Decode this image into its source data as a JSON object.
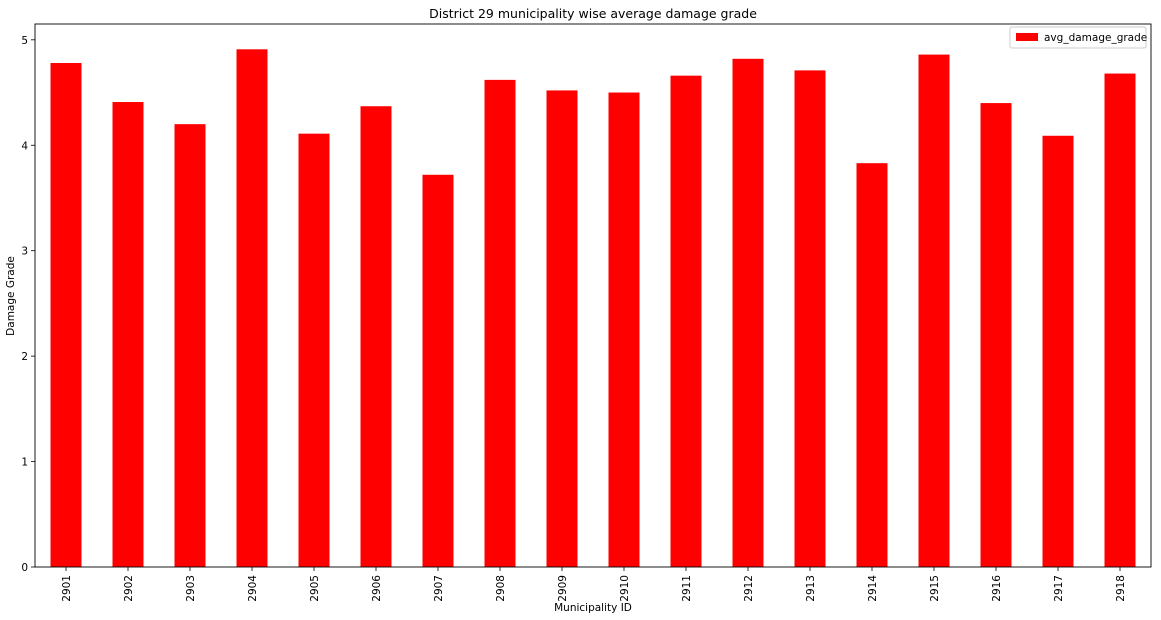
{
  "chart_data": {
    "type": "bar",
    "title": "District 29 municipality wise average damage grade",
    "xlabel": "Municipality ID",
    "ylabel": "Damage Grade",
    "categories": [
      "2901",
      "2902",
      "2903",
      "2904",
      "2905",
      "2906",
      "2907",
      "2908",
      "2909",
      "2910",
      "2911",
      "2912",
      "2913",
      "2914",
      "2915",
      "2916",
      "2917",
      "2918"
    ],
    "series": [
      {
        "name": "avg_damage_grade",
        "color": "#ff0000",
        "values": [
          4.78,
          4.41,
          4.2,
          4.91,
          4.11,
          4.37,
          3.72,
          4.62,
          4.52,
          4.5,
          4.66,
          4.82,
          4.71,
          3.83,
          4.86,
          4.4,
          4.09,
          4.68
        ]
      }
    ],
    "ylim": [
      0,
      5.15
    ],
    "yticks": [
      0,
      1,
      2,
      3,
      4,
      5
    ],
    "grid": false,
    "legend_position": "top-right"
  }
}
